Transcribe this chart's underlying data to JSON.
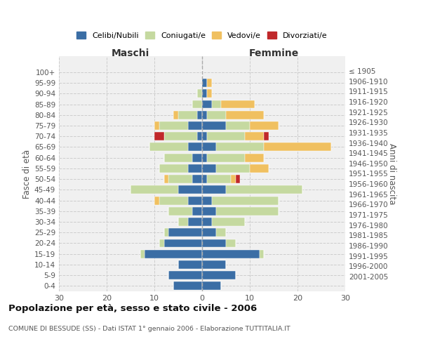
{
  "age_groups": [
    "0-4",
    "5-9",
    "10-14",
    "15-19",
    "20-24",
    "25-29",
    "30-34",
    "35-39",
    "40-44",
    "45-49",
    "50-54",
    "55-59",
    "60-64",
    "65-69",
    "70-74",
    "75-79",
    "80-84",
    "85-89",
    "90-94",
    "95-99",
    "100+"
  ],
  "birth_years": [
    "2001-2005",
    "1996-2000",
    "1991-1995",
    "1986-1990",
    "1981-1985",
    "1976-1980",
    "1971-1975",
    "1966-1970",
    "1961-1965",
    "1956-1960",
    "1951-1955",
    "1946-1950",
    "1941-1945",
    "1936-1940",
    "1931-1935",
    "1926-1930",
    "1921-1925",
    "1916-1920",
    "1911-1915",
    "1906-1910",
    "≤ 1905"
  ],
  "maschi": {
    "celibi": [
      6,
      7,
      5,
      12,
      8,
      7,
      3,
      2,
      3,
      5,
      2,
      3,
      2,
      3,
      1,
      3,
      1,
      0,
      0,
      0,
      0
    ],
    "coniugati": [
      0,
      0,
      0,
      1,
      1,
      1,
      2,
      5,
      6,
      10,
      5,
      6,
      6,
      8,
      7,
      6,
      4,
      2,
      1,
      0,
      0
    ],
    "vedovi": [
      0,
      0,
      0,
      0,
      0,
      0,
      0,
      0,
      1,
      0,
      1,
      0,
      0,
      0,
      0,
      1,
      1,
      0,
      0,
      0,
      0
    ],
    "divorziati": [
      0,
      0,
      0,
      0,
      0,
      0,
      0,
      0,
      0,
      0,
      0,
      0,
      0,
      0,
      2,
      0,
      0,
      0,
      0,
      0,
      0
    ]
  },
  "femmine": {
    "nubili": [
      4,
      7,
      5,
      12,
      5,
      3,
      2,
      3,
      2,
      5,
      1,
      3,
      1,
      3,
      1,
      5,
      1,
      2,
      1,
      1,
      0
    ],
    "coniugate": [
      0,
      0,
      0,
      1,
      2,
      2,
      7,
      13,
      14,
      16,
      5,
      7,
      8,
      10,
      8,
      5,
      4,
      2,
      0,
      0,
      0
    ],
    "vedove": [
      0,
      0,
      0,
      0,
      0,
      0,
      0,
      0,
      0,
      0,
      1,
      4,
      4,
      14,
      4,
      6,
      8,
      7,
      1,
      1,
      0
    ],
    "divorziate": [
      0,
      0,
      0,
      0,
      0,
      0,
      0,
      0,
      0,
      0,
      1,
      0,
      0,
      0,
      1,
      0,
      0,
      0,
      0,
      0,
      0
    ]
  },
  "colors": {
    "celibi_nubili": "#3b6ea5",
    "coniugati": "#c5d9a0",
    "vedovi": "#f0c060",
    "divorziati": "#c0282a"
  },
  "xlim": [
    -30,
    30
  ],
  "xticks": [
    -30,
    -20,
    -10,
    0,
    10,
    20,
    30
  ],
  "xticklabels": [
    "30",
    "20",
    "10",
    "0",
    "10",
    "20",
    "30"
  ],
  "title": "Popolazione per età, sesso e stato civile - 2006",
  "subtitle": "COMUNE DI BESSUDE (SS) - Dati ISTAT 1° gennaio 2006 - Elaborazione TUTTITALIA.IT",
  "ylabel": "Fasce di età",
  "ylabel2": "Anni di nascita",
  "legend_labels": [
    "Celibi/Nubili",
    "Coniugati/e",
    "Vedovi/e",
    "Divorziati/e"
  ],
  "maschi_label": "Maschi",
  "femmine_label": "Femmine",
  "bg_color": "#ffffff"
}
